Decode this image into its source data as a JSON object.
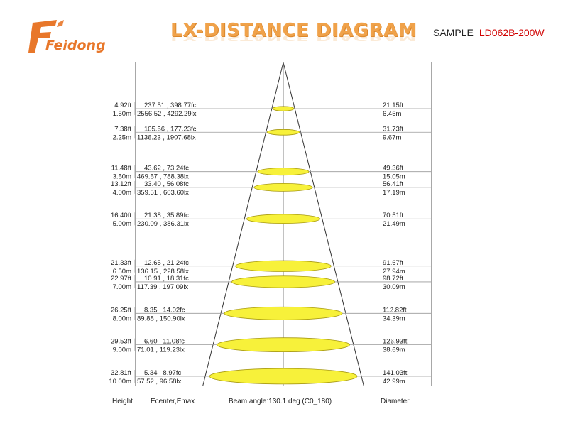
{
  "header": {
    "logo_text": "Feidong",
    "title": "LX-DISTANCE DIAGRAM",
    "sample_label": "SAMPLE",
    "model": "LD062B-200W"
  },
  "colors": {
    "accent": "#f0a24a",
    "logo": "#e8772a",
    "model": "#d00000",
    "ellipse_fill": "#f7f13a",
    "ellipse_stroke": "#a89a12"
  },
  "rows": [
    {
      "dist_ft": "4.92ft",
      "dist_m": "1.50m",
      "fc": "237.51 , 398.77fc",
      "lx": "2556.52 , 4292.29lx",
      "dia_ft": "21.15ft",
      "dia_m": "6.45m"
    },
    {
      "dist_ft": "7.38ft",
      "dist_m": "2.25m",
      "fc": "105.56 , 177.23fc",
      "lx": "1136.23 , 1907.68lx",
      "dia_ft": "31.73ft",
      "dia_m": "9.67m"
    },
    {
      "dist_ft": "11.48ft",
      "dist_m": "3.50m",
      "fc": "43.62 , 73.24fc",
      "lx": "469.57 , 788.38lx",
      "dia_ft": "49.36ft",
      "dia_m": "15.05m"
    },
    {
      "dist_ft": "13.12ft",
      "dist_m": "4.00m",
      "fc": "33.40 , 56.08fc",
      "lx": "359.51 , 603.60lx",
      "dia_ft": "56.41ft",
      "dia_m": "17.19m"
    },
    {
      "dist_ft": "16.40ft",
      "dist_m": "5.00m",
      "fc": "21.38 , 35.89fc",
      "lx": "230.09 , 386.31lx",
      "dia_ft": "70.51ft",
      "dia_m": "21.49m"
    },
    {
      "dist_ft": "21.33ft",
      "dist_m": "6.50m",
      "fc": "12.65 , 21.24fc",
      "lx": "136.15 , 228.58lx",
      "dia_ft": "91.67ft",
      "dia_m": "27.94m"
    },
    {
      "dist_ft": "22.97ft",
      "dist_m": "7.00m",
      "fc": "10.91 , 18.31fc",
      "lx": "117.39 , 197.09lx",
      "dia_ft": "98.72ft",
      "dia_m": "30.09m"
    },
    {
      "dist_ft": "26.25ft",
      "dist_m": "8.00m",
      "fc": "8.35 , 14.02fc",
      "lx": "89.88 , 150.90lx",
      "dia_ft": "112.82ft",
      "dia_m": "34.39m"
    },
    {
      "dist_ft": "29.53ft",
      "dist_m": "9.00m",
      "fc": "6.60 , 11.08fc",
      "lx": "71.01 , 119.23lx",
      "dia_ft": "126.93ft",
      "dia_m": "38.69m"
    },
    {
      "dist_ft": "32.81ft",
      "dist_m": "10.00m",
      "fc": "5.34 , 8.97fc",
      "lx": "57.52 , 96.58lx",
      "dia_ft": "141.03ft",
      "dia_m": "42.99m"
    }
  ],
  "footer": {
    "height": "Height",
    "ecenter": "Ecenter,Emax",
    "beam": "Beam angle:130.1 deg (C0_180)",
    "diameter": "Diameter"
  }
}
